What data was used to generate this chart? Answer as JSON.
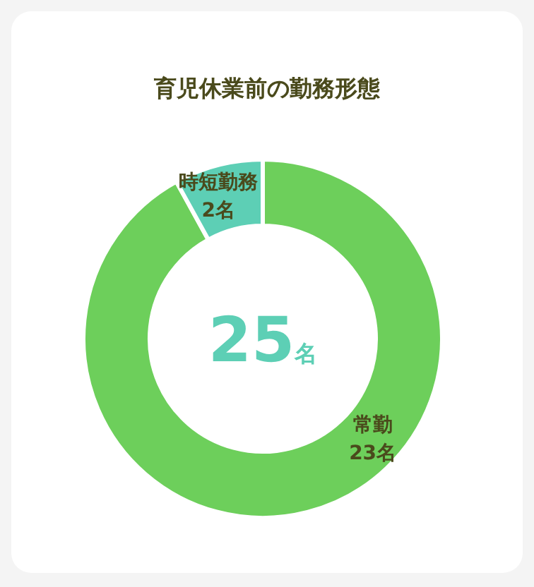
{
  "chart_data": {
    "type": "donut",
    "title": "育児休業前の勤務形態",
    "categories": [
      "常勤",
      "時短勤務"
    ],
    "values": [
      23,
      2
    ],
    "colors": [
      "#6dcf5b",
      "#5dcfb5"
    ],
    "value_labels": [
      "23名",
      "2名"
    ],
    "annotations": [
      "25名"
    ]
  }
}
